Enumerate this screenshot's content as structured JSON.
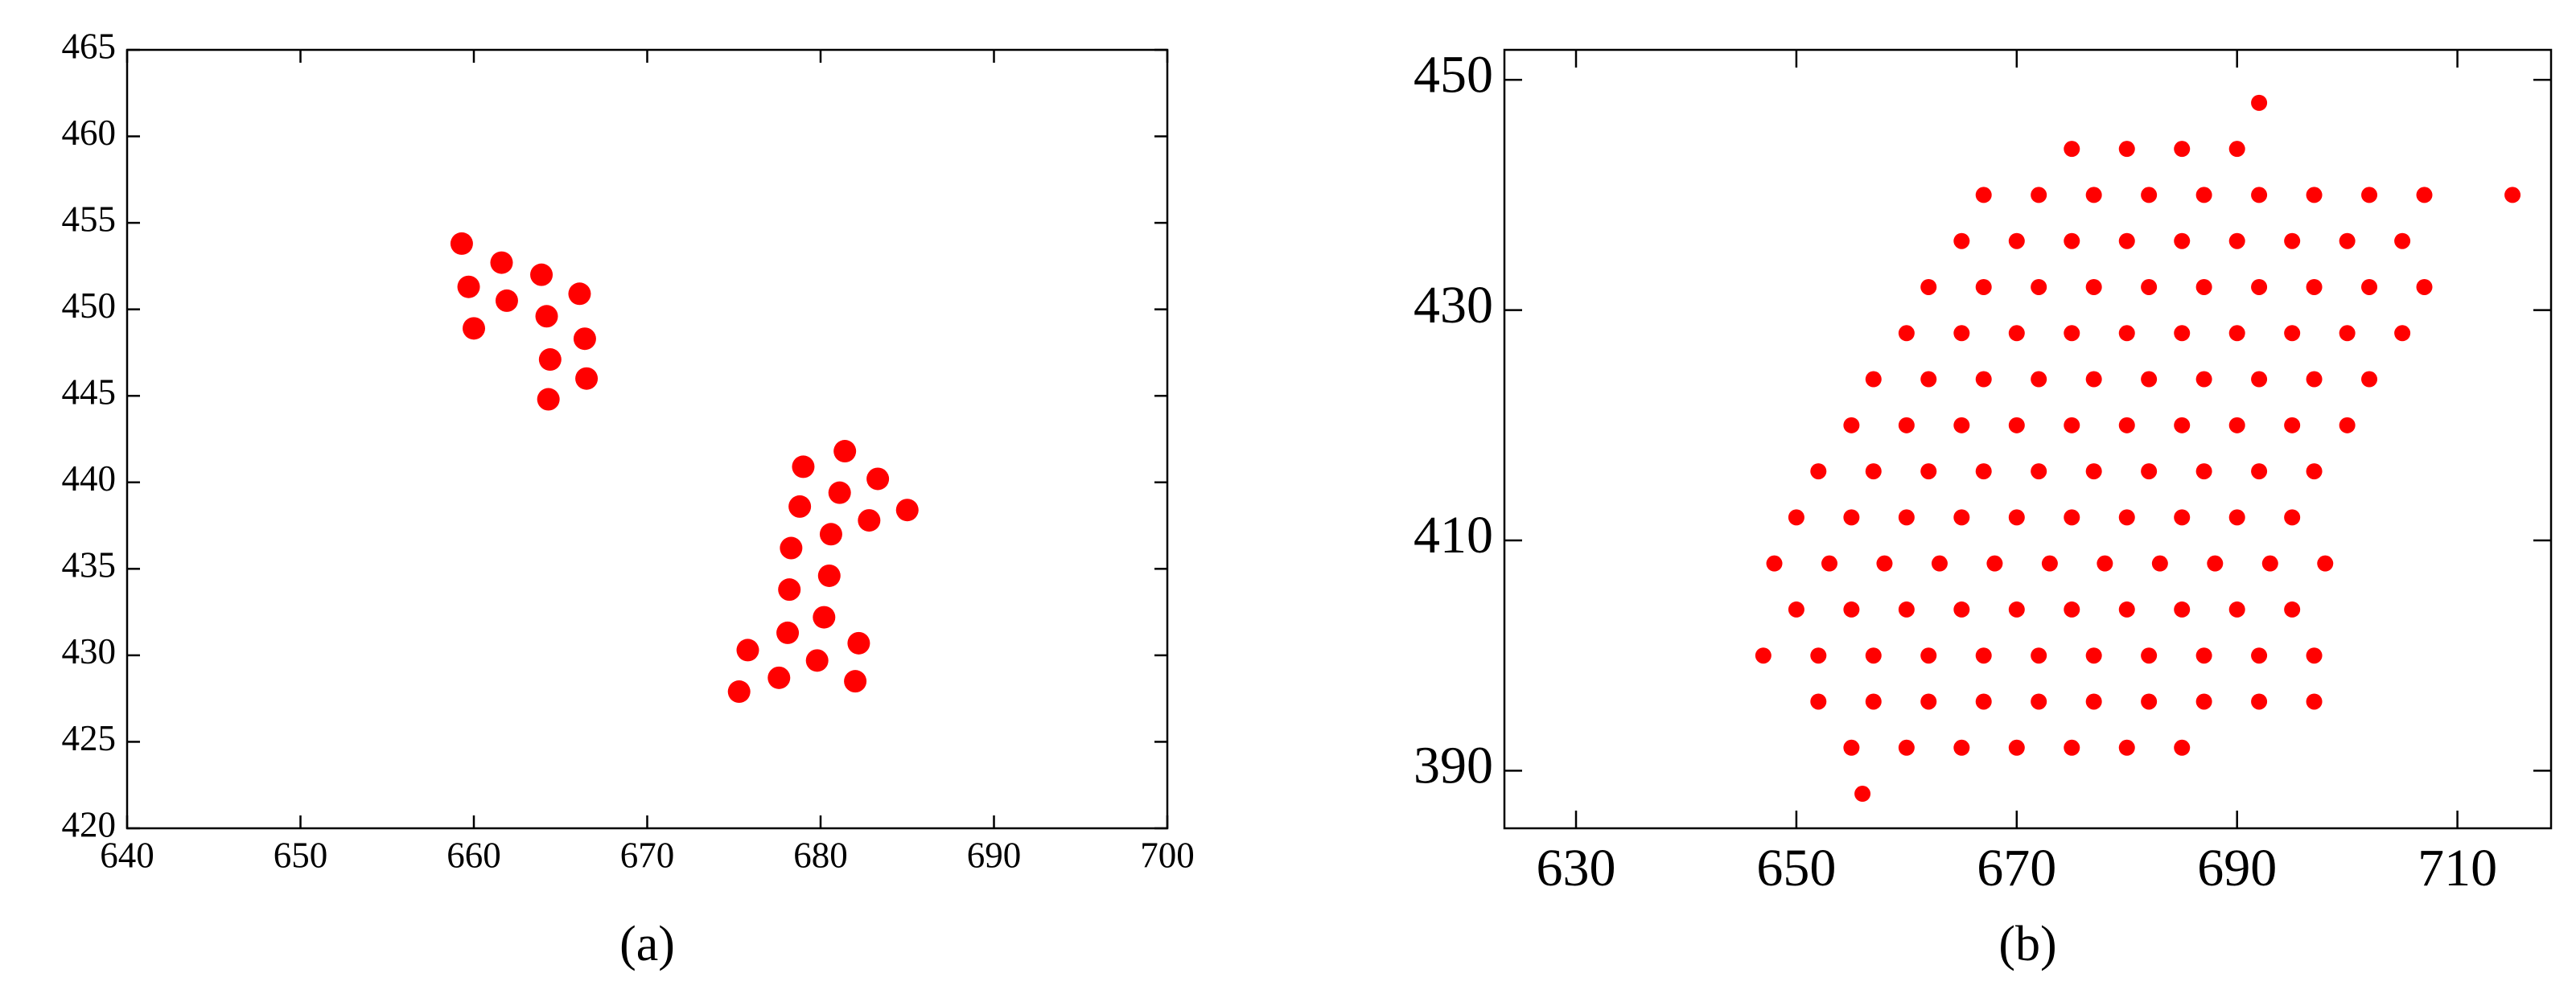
{
  "chart_data": [
    {
      "type": "scatter",
      "label": "(a)",
      "color": "#ff0000",
      "xlim": [
        640,
        700
      ],
      "ylim": [
        420,
        465
      ],
      "xticks": [
        640,
        650,
        660,
        670,
        680,
        690,
        700
      ],
      "yticks": [
        420,
        425,
        430,
        435,
        440,
        445,
        450,
        455,
        460,
        465
      ],
      "x": [
        659.3,
        659.7,
        660,
        661.6,
        661.9,
        663.9,
        664.2,
        664.4,
        664.3,
        666.1,
        666.4,
        666.5,
        679,
        681.4,
        683.3,
        685,
        678.8,
        681.1,
        682.8,
        680.6,
        678.3,
        680.5,
        678.2,
        680.2,
        678.1,
        675.8,
        682.2,
        677.6,
        679.8,
        682,
        675.3
      ],
      "y": [
        453.8,
        451.3,
        448.9,
        452.7,
        450.5,
        452,
        449.6,
        447.1,
        444.8,
        450.9,
        448.3,
        446,
        440.9,
        441.8,
        440.2,
        438.4,
        438.6,
        439.4,
        437.8,
        437,
        436.2,
        434.6,
        433.8,
        432.2,
        431.3,
        430.3,
        430.7,
        428.7,
        429.7,
        428.5,
        427.9
      ]
    },
    {
      "type": "scatter",
      "label": "(b)",
      "color": "#ff0000",
      "xlim": [
        623.5,
        718.5
      ],
      "ylim": [
        385,
        452.6
      ],
      "xticks": [
        630,
        650,
        670,
        690,
        710
      ],
      "yticks": [
        390,
        410,
        430,
        450
      ],
      "x": [
        656,
        655,
        660,
        665,
        670,
        675,
        680,
        685,
        652,
        657,
        662,
        667,
        672,
        677,
        682,
        687,
        692,
        697,
        647,
        652,
        657,
        662,
        667,
        672,
        677,
        682,
        687,
        692,
        697,
        650,
        655,
        660,
        665,
        670,
        675,
        680,
        685,
        690,
        695,
        648,
        653,
        658,
        663,
        668,
        673,
        678,
        683,
        688,
        693,
        698,
        650,
        655,
        660,
        665,
        670,
        675,
        680,
        685,
        690,
        695,
        652,
        657,
        662,
        667,
        672,
        677,
        682,
        687,
        692,
        697,
        655,
        660,
        665,
        670,
        675,
        680,
        685,
        690,
        695,
        700,
        657,
        662,
        667,
        672,
        677,
        682,
        687,
        692,
        697,
        702,
        660,
        665,
        670,
        675,
        680,
        685,
        690,
        695,
        700,
        705,
        662,
        667,
        672,
        677,
        682,
        687,
        692,
        697,
        702,
        707,
        665,
        670,
        675,
        680,
        685,
        690,
        695,
        700,
        705,
        667,
        672,
        677,
        682,
        687,
        692,
        697,
        702,
        707,
        715,
        675,
        680,
        685,
        690,
        692
      ],
      "y": [
        388,
        392,
        392,
        392,
        392,
        392,
        392,
        392,
        396,
        396,
        396,
        396,
        396,
        396,
        396,
        396,
        396,
        396,
        400,
        400,
        400,
        400,
        400,
        400,
        400,
        400,
        400,
        400,
        400,
        404,
        404,
        404,
        404,
        404,
        404,
        404,
        404,
        404,
        404,
        408,
        408,
        408,
        408,
        408,
        408,
        408,
        408,
        408,
        408,
        408,
        412,
        412,
        412,
        412,
        412,
        412,
        412,
        412,
        412,
        412,
        416,
        416,
        416,
        416,
        416,
        416,
        416,
        416,
        416,
        416,
        420,
        420,
        420,
        420,
        420,
        420,
        420,
        420,
        420,
        420,
        424,
        424,
        424,
        424,
        424,
        424,
        424,
        424,
        424,
        424,
        428,
        428,
        428,
        428,
        428,
        428,
        428,
        428,
        428,
        428,
        432,
        432,
        432,
        432,
        432,
        432,
        432,
        432,
        432,
        432,
        436,
        436,
        436,
        436,
        436,
        436,
        436,
        436,
        436,
        440,
        440,
        440,
        440,
        440,
        440,
        440,
        440,
        440,
        440,
        444,
        444,
        444,
        444,
        448
      ]
    }
  ]
}
